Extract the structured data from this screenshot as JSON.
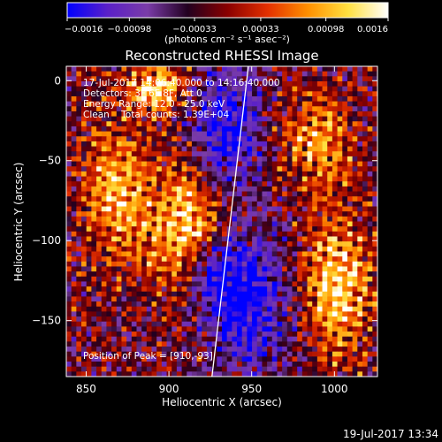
{
  "chart_data": {
    "type": "heatmap",
    "title": "Reconstructed RHESSI Image",
    "xlabel": "Heliocentric X (arcsec)",
    "ylabel": "Heliocentric Y (arcsec)",
    "xlim": [
      838,
      1026
    ],
    "ylim": [
      -185,
      9
    ],
    "x_ticks": [
      850,
      900,
      950,
      1000
    ],
    "y_ticks": [
      0,
      -50,
      -100,
      -150
    ],
    "x_tick_labels": [
      "850",
      "900",
      "950",
      "1000"
    ],
    "y_tick_labels": [
      "0",
      "−50",
      "−100",
      "−150"
    ],
    "colorbar": {
      "range": [
        -0.0016,
        0.0016
      ],
      "ticks": [
        -0.0016,
        -0.00098,
        -0.00033,
        0.00033,
        0.00098,
        0.0016
      ],
      "tick_labels": [
        "−0.0016",
        "−0.00098",
        "−0.00033",
        "0.00033",
        "0.00098",
        "0.0016"
      ],
      "units_label": "(photons cm⁻² s⁻¹ asec⁻²)",
      "colormap": [
        "#0000ff",
        "#5a20c8",
        "#7a3ca8",
        "#220020",
        "#8a0000",
        "#e43000",
        "#ff9000",
        "#ffe040",
        "#ffffff"
      ]
    },
    "annotations": {
      "time": "17-Jul-2017 14:06:40.000 to 14:16:40.000",
      "detectors": "Detectors: 3F 6F 8F, Att 0",
      "energy": "Energy Range: 12.0 - 25.0 keV",
      "method": "Clean    Total counts: 1.39E+04",
      "peak": "Position of Peak = [910,-93]"
    },
    "limb_line": {
      "x": [
        926,
        948
      ],
      "y": [
        -185,
        9
      ]
    },
    "hot_regions": [
      {
        "x": 893,
        "y": -5,
        "sx": 12,
        "sy": 10,
        "amp": 1.0
      },
      {
        "x": 910,
        "y": -93,
        "sx": 16,
        "sy": 26,
        "amp": 1.0
      },
      {
        "x": 1002,
        "y": -128,
        "sx": 14,
        "sy": 30,
        "amp": 0.95
      },
      {
        "x": 868,
        "y": -70,
        "sx": 14,
        "sy": 30,
        "amp": 0.8
      },
      {
        "x": 990,
        "y": -38,
        "sx": 14,
        "sy": 20,
        "amp": 0.7
      }
    ],
    "cool_regions": [
      {
        "x": 935,
        "y": -30,
        "sx": 14,
        "sy": 26,
        "amp": 0.9
      },
      {
        "x": 948,
        "y": -140,
        "sx": 16,
        "sy": 30,
        "amp": 0.9
      },
      {
        "x": 925,
        "y": -120,
        "sx": 12,
        "sy": 18,
        "amp": 0.7
      }
    ],
    "footer": "19-Jul-2017 13:34"
  }
}
